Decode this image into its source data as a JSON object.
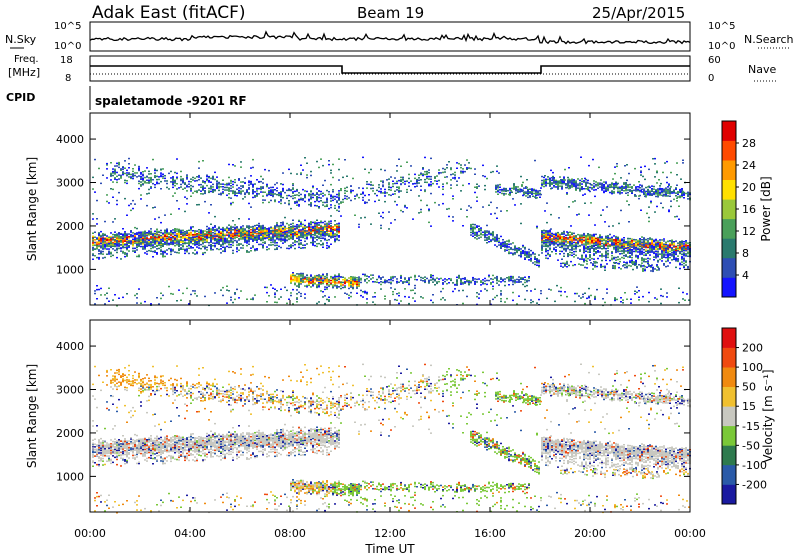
{
  "header": {
    "station": "Adak East (fitACF)",
    "beam": "Beam 19",
    "date": "25/Apr/2015"
  },
  "noise_panel": {
    "left_label": "N.Sky",
    "right_label": "N.Search",
    "left_ticks": [
      "10^5",
      "10^0"
    ],
    "right_ticks": [
      "10^5",
      "10^0"
    ]
  },
  "freq_panel": {
    "left_label_line1": "Freq.",
    "left_label_line2": "[MHz]",
    "left_ticks": [
      "18",
      "8"
    ],
    "right_ticks": [
      "60",
      "0"
    ],
    "right_label": "Nave"
  },
  "cpid_panel": {
    "label": "CPID",
    "mode": "spaletamode -9201 RF"
  },
  "time_axis": {
    "label": "Time UT",
    "ticks": [
      "00:00",
      "04:00",
      "08:00",
      "12:00",
      "16:00",
      "20:00",
      "00:00"
    ]
  },
  "chart_data": [
    {
      "type": "heatmap",
      "name": "power",
      "ylabel": "Slant Range [km]",
      "ylim": [
        180,
        4600
      ],
      "yticks": [
        "1000",
        "2000",
        "3000",
        "4000"
      ],
      "colorbar_label": "Power [dB]",
      "colorbar_ticks": [
        "28",
        "24",
        "20",
        "16",
        "12",
        "8",
        "4"
      ],
      "colors": [
        "#1414ff",
        "#2e4eb4",
        "#2a7a6e",
        "#4aa05a",
        "#9ac83a",
        "#ffe000",
        "#ff9a00",
        "#ff4a00",
        "#e00000"
      ]
    },
    {
      "type": "heatmap",
      "name": "velocity",
      "ylabel": "Slant Range [km]",
      "ylim": [
        180,
        4600
      ],
      "yticks": [
        "1000",
        "2000",
        "3000",
        "4000"
      ],
      "colorbar_label": "Velocity [m s⁻¹]",
      "colorbar_ticks": [
        "200",
        "100",
        "50",
        "15",
        "-15",
        "-50",
        "-100",
        "-200"
      ],
      "colors": [
        "#1a1aa0",
        "#2a5aa8",
        "#2e7a4e",
        "#7ac838",
        "#c8c8c0",
        "#f0c030",
        "#f08a10",
        "#f04a10",
        "#e01010"
      ]
    }
  ]
}
